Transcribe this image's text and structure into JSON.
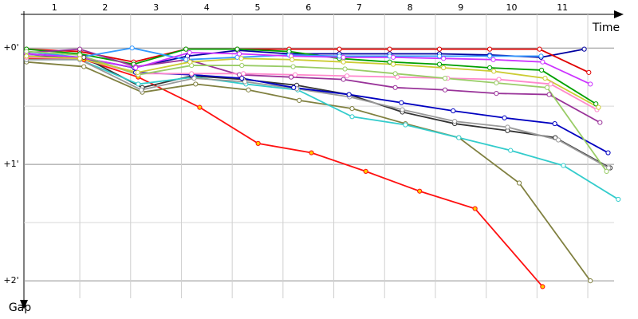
{
  "chart_data": {
    "type": "line",
    "x_label": "Time",
    "y_label": "Gap",
    "categories": [
      "1",
      "2",
      "3",
      "4",
      "5",
      "6",
      "7",
      "8",
      "9",
      "10",
      "11"
    ],
    "xlim": [
      -0.1,
      11.8
    ],
    "lap_lines": [
      1,
      2,
      3,
      4,
      5,
      6,
      7,
      8,
      9,
      10,
      11
    ],
    "ylim": [
      -0.2,
      2.15
    ],
    "yticks": [
      {
        "value": 0,
        "label": "+0'"
      },
      {
        "value": 1,
        "label": "+1'"
      },
      {
        "value": 2,
        "label": "+2'"
      }
    ],
    "minor_yticks": [
      0.5,
      1.5
    ],
    "y_inverted": true,
    "series": [
      {
        "color": "#ff1010",
        "marker_fill": "#ffcc00",
        "x": [
          -0.05,
          1.08,
          2.15,
          3.36,
          4.51,
          5.56,
          6.63,
          7.69,
          8.78,
          10.11
        ],
        "values": [
          0.09,
          0.1,
          0.25,
          0.51,
          0.82,
          0.9,
          1.06,
          1.23,
          1.38,
          2.05
        ]
      },
      {
        "color": "#808040",
        "x": [
          -0.05,
          1.08,
          2.23,
          3.28,
          4.32,
          5.32,
          6.36,
          7.41,
          8.46,
          9.65,
          11.05
        ],
        "values": [
          0.12,
          0.16,
          0.38,
          0.31,
          0.36,
          0.45,
          0.52,
          0.65,
          0.77,
          1.16,
          2.0
        ]
      },
      {
        "color": "#333333",
        "x": [
          -0.05,
          1.08,
          2.23,
          3.2,
          4.22,
          5.27,
          6.3,
          7.35,
          8.38,
          9.42,
          10.36,
          11.44
        ],
        "values": [
          0.07,
          0.08,
          0.34,
          0.24,
          0.27,
          0.32,
          0.4,
          0.55,
          0.65,
          0.71,
          0.77,
          1.03
        ]
      },
      {
        "color": "#33cccc",
        "x": [
          -0.05,
          1.0,
          2.15,
          3.25,
          4.27,
          5.29,
          6.36,
          7.41,
          8.46,
          9.48,
          10.52,
          11.6
        ],
        "values": [
          0.1,
          0.1,
          0.31,
          0.25,
          0.31,
          0.36,
          0.59,
          0.66,
          0.77,
          0.88,
          1.01,
          1.3
        ]
      },
      {
        "color": "#999999",
        "x": [
          -0.05,
          1.0,
          2.21,
          3.25,
          4.25,
          5.27,
          6.31,
          7.35,
          8.38,
          9.42,
          10.42,
          11.41
        ],
        "values": [
          0.1,
          0.1,
          0.36,
          0.26,
          0.29,
          0.35,
          0.42,
          0.53,
          0.63,
          0.68,
          0.79,
          1.03
        ]
      },
      {
        "color": "#0000c0",
        "x": [
          -0.05,
          1.0,
          2.1,
          3.2,
          4.19,
          5.21,
          6.3,
          7.33,
          8.35,
          9.36,
          10.35,
          11.4
        ],
        "values": [
          0.07,
          0.08,
          0.21,
          0.23,
          0.26,
          0.34,
          0.4,
          0.47,
          0.54,
          0.6,
          0.65,
          0.9
        ]
      },
      {
        "color": "#0000a0",
        "x": [
          -0.05,
          1.0,
          2.07,
          3.12,
          4.11,
          5.12,
          6.11,
          7.1,
          8.08,
          9.07,
          10.08,
          10.93
        ],
        "values": [
          0.05,
          0.08,
          0.17,
          0.07,
          0.02,
          0.05,
          0.05,
          0.05,
          0.05,
          0.06,
          0.08,
          0.01
        ]
      },
      {
        "color": "#e00000",
        "x": [
          -0.05,
          1.0,
          2.06,
          3.09,
          4.1,
          5.12,
          6.11,
          7.1,
          8.08,
          9.07,
          10.05,
          11.02
        ],
        "values": [
          0.01,
          0.03,
          0.12,
          0.01,
          0.01,
          0.01,
          0.01,
          0.01,
          0.01,
          0.01,
          0.01,
          0.21
        ]
      },
      {
        "color": "#00a000",
        "x": [
          -0.05,
          1.0,
          2.06,
          3.09,
          4.1,
          5.12,
          6.11,
          7.1,
          8.08,
          9.07,
          10.09,
          11.16
        ],
        "values": [
          0.01,
          0.05,
          0.14,
          0.01,
          0.01,
          0.03,
          0.09,
          0.12,
          0.14,
          0.17,
          0.19,
          0.48
        ]
      },
      {
        "color": "#993399",
        "x": [
          -0.05,
          1.0,
          2.1,
          3.12,
          4.14,
          5.16,
          6.19,
          7.21,
          8.19,
          9.2,
          10.24,
          11.24
        ],
        "values": [
          0.04,
          0.01,
          0.16,
          0.1,
          0.23,
          0.25,
          0.27,
          0.34,
          0.36,
          0.39,
          0.4,
          0.64
        ]
      },
      {
        "color": "#3399ff",
        "x": [
          -0.05,
          1.0,
          2.03,
          3.09,
          4.1,
          5.12,
          6.11,
          7.1,
          8.08,
          9.07,
          10.08
        ],
        "values": [
          0.03,
          0.08,
          0.0,
          0.1,
          0.08,
          0.06,
          0.07,
          0.07,
          0.07,
          0.07,
          0.07
        ]
      },
      {
        "color": "#cc33ff",
        "x": [
          -0.05,
          1.0,
          2.1,
          3.16,
          4.14,
          5.16,
          6.19,
          7.17,
          8.16,
          9.14,
          10.11,
          11.05
        ],
        "values": [
          0.05,
          0.08,
          0.17,
          0.04,
          0.05,
          0.07,
          0.08,
          0.08,
          0.09,
          0.1,
          0.12,
          0.31
        ]
      },
      {
        "color": "#ff88cc",
        "x": [
          -0.05,
          1.0,
          2.14,
          3.2,
          4.22,
          5.24,
          6.26,
          7.25,
          8.24,
          9.25,
          10.27,
          11.18
        ],
        "values": [
          0.08,
          0.09,
          0.22,
          0.22,
          0.22,
          0.23,
          0.24,
          0.25,
          0.26,
          0.27,
          0.31,
          0.53
        ]
      },
      {
        "color": "#99cc66",
        "x": [
          -0.05,
          1.0,
          2.15,
          3.2,
          4.19,
          5.2,
          6.22,
          7.21,
          8.19,
          9.2,
          10.2,
          11.37
        ],
        "values": [
          0.03,
          0.06,
          0.23,
          0.15,
          0.15,
          0.16,
          0.18,
          0.22,
          0.26,
          0.3,
          0.34,
          1.06
        ]
      },
      {
        "color": "#cccc33",
        "x": [
          -0.05,
          1.0,
          2.14,
          3.17,
          4.18,
          5.18,
          6.19,
          7.17,
          8.16,
          9.15,
          10.16,
          11.21
        ],
        "values": [
          0.07,
          0.09,
          0.21,
          0.12,
          0.09,
          0.1,
          0.12,
          0.14,
          0.17,
          0.2,
          0.26,
          0.51
        ]
      }
    ]
  }
}
